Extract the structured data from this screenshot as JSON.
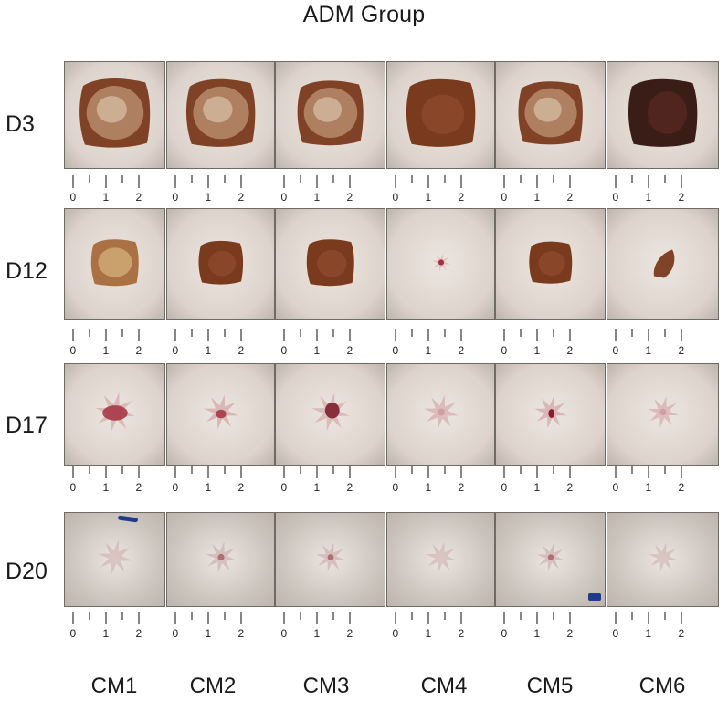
{
  "figure": {
    "title": "ADM Group",
    "rows": [
      "D3",
      "D12",
      "D17",
      "D20"
    ],
    "columns": [
      "CM1",
      "CM2",
      "CM3",
      "CM4",
      "CM5",
      "CM6"
    ],
    "scale_labels": [
      "0",
      "1",
      "2"
    ],
    "colors": {
      "skin": "#ddd3cc",
      "scab_light": "#b78a6d",
      "scab_dark": "#7a3a1e",
      "scab_black": "#3b1d18",
      "wound_red": "#a4303d",
      "pink": "#c98b92",
      "marker_blue": "#1f3a8a"
    }
  }
}
